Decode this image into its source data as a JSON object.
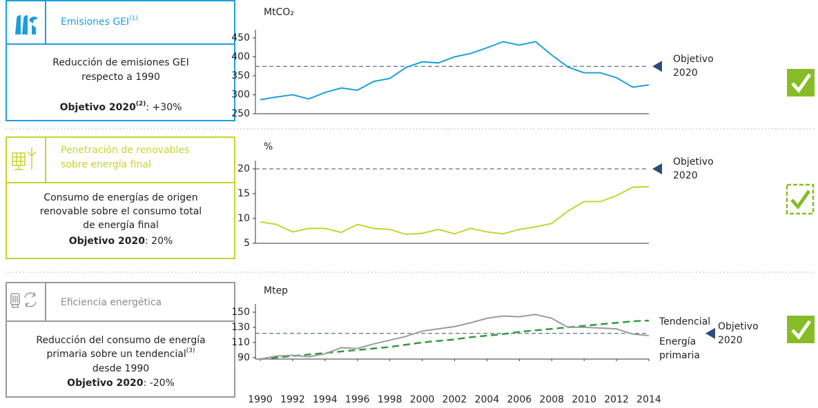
{
  "panels": [
    {
      "title": [
        "Emisiones GEI"
      ],
      "title_note": "(1)",
      "description": [
        "Reducción de emisiones GEI",
        "respecto a 1990"
      ],
      "target_label": "Objetivo 2020",
      "target_note": "(2)",
      "target_value": ": +30%"
    },
    {
      "title": [
        "Penetración de renovables",
        "sobre energía final"
      ],
      "description": [
        "Consumo de energías de origen",
        "renovable sobre el consumo total",
        "de energía final"
      ],
      "target_label": "Objetivo 2020",
      "target_value": ": 20%"
    },
    {
      "title": [
        "Eficiencia energética"
      ],
      "description": [
        "Reducción del consumo de energía",
        "primaria sobre un tendencial",
        "desde 1990"
      ],
      "description_note": "(3)",
      "target_label": "Objetivo 2020",
      "target_value": ": -20%"
    }
  ],
  "chart_data": [
    {
      "type": "line",
      "y_label": "MtCO₂",
      "x": [
        1990,
        1991,
        1992,
        1993,
        1994,
        1995,
        1996,
        1997,
        1998,
        1999,
        2000,
        2001,
        2002,
        2003,
        2004,
        2005,
        2006,
        2007,
        2008,
        2009,
        2010,
        2011,
        2012,
        2013,
        2014
      ],
      "xlim": [
        1990,
        2014
      ],
      "ylim": [
        250,
        450
      ],
      "yticks": [
        250,
        300,
        350,
        400,
        450
      ],
      "color": "#1a9fdb",
      "values": [
        287,
        294,
        300,
        289,
        306,
        318,
        312,
        335,
        343,
        372,
        387,
        384,
        400,
        409,
        424,
        440,
        431,
        440,
        405,
        373,
        358,
        358,
        345,
        320,
        326
      ],
      "target": 375,
      "target_label": "Objetivo 2020",
      "target_color": "#2c4c7c"
    },
    {
      "type": "line",
      "y_label": "%",
      "x": [
        1990,
        1991,
        1992,
        1993,
        1994,
        1995,
        1996,
        1997,
        1998,
        1999,
        2000,
        2001,
        2002,
        2003,
        2004,
        2005,
        2006,
        2007,
        2008,
        2009,
        2010,
        2011,
        2012,
        2013,
        2014
      ],
      "xlim": [
        1990,
        2014
      ],
      "ylim": [
        5,
        20
      ],
      "yticks": [
        5,
        10,
        15,
        20
      ],
      "color": "#c5d32c",
      "values": [
        9.3,
        8.8,
        7.3,
        8.0,
        8.0,
        7.2,
        8.8,
        8.0,
        7.8,
        6.8,
        7.0,
        7.8,
        6.9,
        8.0,
        7.3,
        6.9,
        7.8,
        8.3,
        9.0,
        11.5,
        13.4,
        13.4,
        14.6,
        16.3,
        16.4
      ],
      "target": 20,
      "target_label": "Objetivo 2020",
      "target_color": "#2c4c7c"
    },
    {
      "type": "line",
      "y_label": "Mtep",
      "x": [
        1990,
        1991,
        1992,
        1993,
        1994,
        1995,
        1996,
        1997,
        1998,
        1999,
        2000,
        2001,
        2002,
        2003,
        2004,
        2005,
        2006,
        2007,
        2008,
        2009,
        2010,
        2011,
        2012,
        2013,
        2014
      ],
      "xlim": [
        1990,
        2014
      ],
      "ylim": [
        88,
        150
      ],
      "yticks": [
        90,
        110,
        130,
        150
      ],
      "xticks": [
        1990,
        1992,
        1994,
        1996,
        1998,
        2000,
        2002,
        2004,
        2006,
        2008,
        2010,
        2012,
        2014
      ],
      "series": [
        {
          "name": "Tendencial",
          "color": "#2e9a3c",
          "dashed": true,
          "values": [
            88,
            90,
            92,
            94,
            96,
            98,
            100,
            102,
            104,
            107,
            110,
            112,
            114,
            117,
            119,
            121,
            124,
            126,
            128,
            130,
            132,
            134,
            136,
            138,
            139
          ]
        },
        {
          "name": "Energía primaria",
          "color": "#9a9a9a",
          "values": [
            88,
            92,
            93,
            91,
            95,
            103,
            102,
            108,
            113,
            118,
            125,
            128,
            131,
            136,
            142,
            145,
            144,
            147,
            142,
            130,
            130,
            129,
            128,
            121,
            119
          ]
        }
      ],
      "target": 122,
      "target_label": "Objetivo 2020",
      "target_color": "#2c4c7c"
    }
  ]
}
